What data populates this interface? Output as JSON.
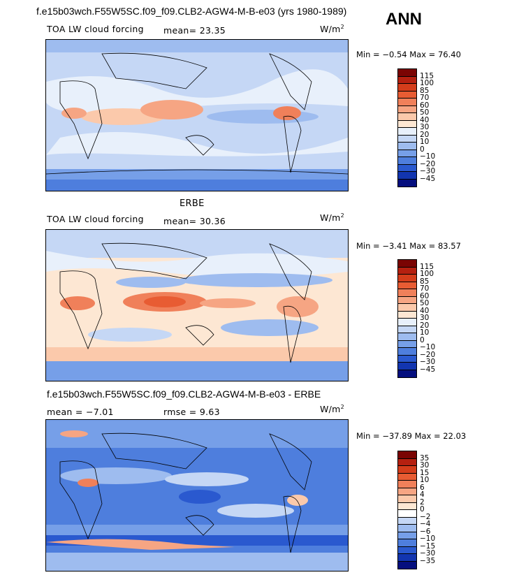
{
  "header": {
    "title": "f.e15b03wch.F55W5SC.f09_f09.CLB2-AGW4-M-B-e03 (yrs 1980-1989)",
    "season": "ANN"
  },
  "panels": [
    {
      "label": "TOA LW cloud forcing",
      "stat_text": "mean=  23.35",
      "units": "W/m",
      "units_sup": "2",
      "minmax": "Min =  −0.54 Max =  76.40",
      "colorbar": {
        "colors": [
          "#7a0403",
          "#b52010",
          "#d43d1b",
          "#e85c33",
          "#f0805a",
          "#f6a583",
          "#fbc9ab",
          "#fde7d3",
          "#e8f0fb",
          "#c5d7f5",
          "#9ebcef",
          "#769fe8",
          "#4e7edd",
          "#2a59cf",
          "#1235b0",
          "#050f7e"
        ],
        "labels": [
          "115",
          "100",
          "85",
          "70",
          "60",
          "50",
          "40",
          "30",
          "20",
          "10",
          "0",
          "−10",
          "−20",
          "−30",
          "−45"
        ]
      }
    },
    {
      "title": "ERBE",
      "label": "TOA LW cloud forcing",
      "stat_text": "mean=  30.36",
      "units": "W/m",
      "units_sup": "2",
      "minmax": "Min =  −3.41 Max =  83.57",
      "colorbar": {
        "colors": [
          "#7a0403",
          "#b52010",
          "#d43d1b",
          "#e85c33",
          "#f0805a",
          "#f6a583",
          "#fbc9ab",
          "#fde7d3",
          "#e8f0fb",
          "#c5d7f5",
          "#9ebcef",
          "#769fe8",
          "#4e7edd",
          "#2a59cf",
          "#1235b0",
          "#050f7e"
        ],
        "labels": [
          "115",
          "100",
          "85",
          "70",
          "60",
          "50",
          "40",
          "30",
          "20",
          "10",
          "0",
          "−10",
          "−20",
          "−30",
          "−45"
        ]
      }
    },
    {
      "title": "f.e15b03wch.F55W5SC.f09_f09.CLB2-AGW4-M-B-e03 - ERBE",
      "stat_text": "mean =  −7.01",
      "rmse_text": "rmse =   9.63",
      "units": "W/m",
      "units_sup": "2",
      "minmax": "Min = −37.89 Max =  22.03",
      "colorbar": {
        "colors": [
          "#7a0403",
          "#b52010",
          "#d43d1b",
          "#e85c33",
          "#f0805a",
          "#f6a583",
          "#fbc9ab",
          "#fde7d3",
          "#ffffff",
          "#c5d7f5",
          "#9ebcef",
          "#769fe8",
          "#4e7edd",
          "#2a59cf",
          "#1235b0",
          "#050f7e"
        ],
        "labels": [
          "35",
          "30",
          "15",
          "10",
          "6",
          "4",
          "2",
          "0",
          "−2",
          "−4",
          "−6",
          "−10",
          "−15",
          "−30",
          "−35"
        ]
      }
    }
  ]
}
